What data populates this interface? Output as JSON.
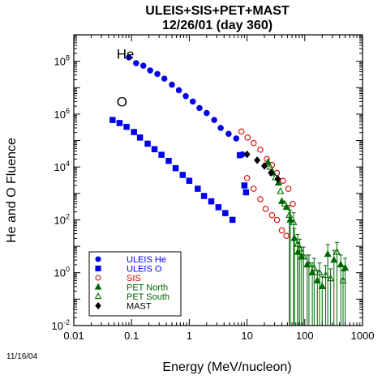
{
  "chart_data": {
    "type": "scatter",
    "title": "ULEIS+SIS+PET+MAST",
    "subtitle": "12/26/01 (day 360)",
    "xlabel": "Energy (MeV/nucleon)",
    "ylabel": "He and O Fluence",
    "x_scale": "log",
    "y_scale": "log",
    "xlim": [
      0.01,
      1000
    ],
    "ylim": [
      0.01,
      1000000000.0
    ],
    "x_ticks": [
      "0.01",
      "0.1",
      "1",
      "10",
      "100",
      "1000"
    ],
    "y_ticks": [
      {
        "base": "10",
        "exp": "-2",
        "value": 0.01
      },
      {
        "base": "10",
        "exp": "0",
        "value": 1
      },
      {
        "base": "10",
        "exp": "2",
        "value": 100
      },
      {
        "base": "10",
        "exp": "4",
        "value": 10000
      },
      {
        "base": "10",
        "exp": "6",
        "value": 1000000
      },
      {
        "base": "10",
        "exp": "8",
        "value": 100000000
      }
    ],
    "annotations": [
      {
        "text": "He",
        "x": 0.055,
        "y": 190000000.0
      },
      {
        "text": "O",
        "x": 0.055,
        "y": 3000000.0
      }
    ],
    "legend_placement": "bottom-left",
    "date_label": "11/16/04",
    "series": [
      {
        "name": "ULEIS He",
        "marker": "circle",
        "filled": true,
        "color": "#0000ee",
        "points": [
          [
            0.09,
            140000000.0
          ],
          [
            0.12,
            85000000.0
          ],
          [
            0.16,
            68000000.0
          ],
          [
            0.21,
            45000000.0
          ],
          [
            0.28,
            33000000.0
          ],
          [
            0.37,
            22000000.0
          ],
          [
            0.5,
            13000000.0
          ],
          [
            0.66,
            8000000.0
          ],
          [
            0.87,
            4800000.0
          ],
          [
            1.15,
            3000000.0
          ],
          [
            1.5,
            1700000.0
          ],
          [
            2.0,
            1100000.0
          ],
          [
            2.7,
            600000.0
          ],
          [
            3.5,
            300000.0
          ],
          [
            4.8,
            180000.0
          ],
          [
            6.5,
            120000.0
          ],
          [
            8.3,
            30000.0
          ]
        ]
      },
      {
        "name": "ULEIS O",
        "marker": "square",
        "filled": true,
        "color": "#0000ee",
        "points": [
          [
            0.047,
            600000.0
          ],
          [
            0.062,
            460000.0
          ],
          [
            0.082,
            330000.0
          ],
          [
            0.11,
            210000.0
          ],
          [
            0.14,
            130000.0
          ],
          [
            0.19,
            76000.0
          ],
          [
            0.25,
            47000.0
          ],
          [
            0.33,
            29000.0
          ],
          [
            0.44,
            17000.0
          ],
          [
            0.58,
            9000.0
          ],
          [
            0.77,
            5000.0
          ],
          [
            1.0,
            3000.0
          ],
          [
            1.4,
            1500.0
          ],
          [
            1.8,
            800.0
          ],
          [
            2.4,
            500.0
          ],
          [
            3.2,
            300.0
          ],
          [
            4.2,
            180.0
          ],
          [
            5.6,
            100.0
          ],
          [
            7.5,
            28000.0
          ],
          [
            9.0,
            2000.0
          ],
          [
            9.6,
            1100.0
          ]
        ]
      },
      {
        "name": "SIS",
        "marker": "circle",
        "filled": false,
        "color": "#dd0000",
        "points": [
          [
            8.0,
            220000.0
          ],
          [
            10.2,
            130000.0
          ],
          [
            13.0,
            80000.0
          ],
          [
            17.0,
            45000.0
          ],
          [
            22.0,
            20000.0
          ],
          [
            27.0,
            12000.0
          ],
          [
            33.0,
            6000.0
          ],
          [
            42.0,
            3000.0
          ],
          [
            52.0,
            1500.0
          ],
          [
            62.0,
            400.0
          ],
          [
            10.0,
            3800.0
          ],
          [
            13.0,
            1500.0
          ],
          [
            17.0,
            600.0
          ],
          [
            21.0,
            260.0
          ],
          [
            27.0,
            150.0
          ],
          [
            33.0,
            100.0
          ],
          [
            40.0,
            40.0
          ],
          [
            48.0,
            25.0
          ]
        ]
      },
      {
        "name": "PET North",
        "marker": "triangle",
        "filled": true,
        "color": "#006600",
        "points": [
          [
            23.0,
            15000.0
          ],
          [
            28.0,
            6000.0
          ],
          [
            35.0,
            2500.0
          ],
          [
            40.0,
            500.0
          ],
          [
            48.0,
            300.0
          ],
          [
            56.0,
            100.0
          ],
          [
            66.0,
            20.0
          ],
          [
            76.0,
            6
          ],
          [
            88.0,
            4
          ],
          [
            110.0,
            2
          ],
          [
            135.0,
            1
          ],
          [
            165.0,
            0.5
          ],
          [
            200.0,
            0.3
          ],
          [
            250.0,
            5
          ],
          [
            320.0,
            3
          ],
          [
            420.0,
            2
          ],
          [
            500.0,
            1.5
          ]
        ]
      },
      {
        "name": "PET South",
        "marker": "triangle",
        "filled": false,
        "color": "#006600",
        "points": [
          [
            25.0,
            10000.0
          ],
          [
            31.0,
            4000.0
          ],
          [
            38.0,
            1200.0
          ],
          [
            45.0,
            400.0
          ],
          [
            54.0,
            150.0
          ],
          [
            64.0,
            80.0
          ],
          [
            75.0,
            12.0
          ],
          [
            82.0,
            8
          ],
          [
            95.0,
            4
          ],
          [
            118.0,
            2
          ],
          [
            145.0,
            1.5
          ],
          [
            180.0,
            1
          ],
          [
            230.0,
            0.8
          ],
          [
            280.0,
            0.6
          ],
          [
            360.0,
            6
          ],
          [
            460.0,
            0.5
          ]
        ]
      },
      {
        "name": "MAST",
        "marker": "diamond",
        "filled": true,
        "color": "#000000",
        "points": [
          [
            10.0,
            30000.0
          ],
          [
            15.0,
            18000.0
          ],
          [
            20.0,
            11000.0
          ],
          [
            26.0,
            6000.0
          ],
          [
            34.0,
            3500.0
          ]
        ]
      }
    ]
  }
}
